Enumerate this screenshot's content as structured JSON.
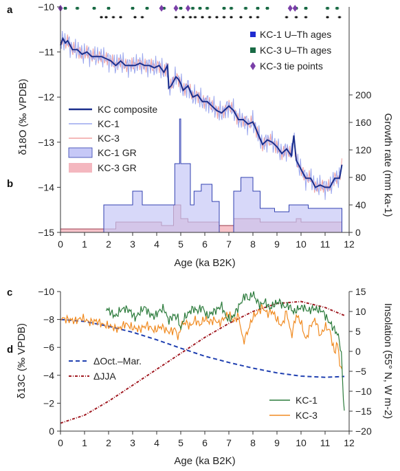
{
  "chart_data": [
    {
      "type": "line",
      "panel_labels": [
        "a",
        "b"
      ],
      "xlabel": "Age (ka B2K)",
      "ylabel_left": "δ18O (‰ VPDB)",
      "ylabel_right": "Growth rate (mm ka-1)",
      "xlim": [
        0,
        12
      ],
      "ylim_left": [
        -15,
        -10
      ],
      "ylim_right": [
        0,
        200
      ],
      "left_axis_inverted": true,
      "x_ticks": [
        "0",
        "1",
        "2",
        "3",
        "4",
        "5",
        "6",
        "7",
        "8",
        "9",
        "10",
        "11",
        "12"
      ],
      "y_ticks_left": [
        "-10",
        "-11",
        "-12",
        "-13",
        "-14",
        "-15"
      ],
      "y_ticks_right": [
        "200",
        "160",
        "120",
        "80",
        "40",
        "0"
      ],
      "legend_top": [
        "KC-1 U–Th ages",
        "KC-3 U–Th ages",
        "KC-3 tie points"
      ],
      "legend_main": [
        "KC composite",
        "KC-1",
        "KC-3",
        "KC-1 GR",
        "KC-3 GR"
      ],
      "colors": {
        "kc_composite": "#1a2e8c",
        "kc1": "#9aa6ee",
        "kc3": "#f0a0a0",
        "kc1_gr_fill": "#c6c8f7",
        "kc3_gr_fill": "#f4b7bf",
        "ages_kc1": "#1f2bd0",
        "ages_kc3": "#1a6b45",
        "tie": "#7a3fa8"
      },
      "series": [
        {
          "name": "KC composite",
          "x": [
            0,
            0.1,
            0.2,
            0.3,
            0.4,
            0.5,
            0.7,
            0.9,
            1.1,
            1.3,
            1.5,
            1.7,
            1.9,
            2.1,
            2.3,
            2.5,
            2.7,
            2.9,
            3.1,
            3.3,
            3.5,
            3.7,
            3.9,
            4.1,
            4.3,
            4.45,
            4.5,
            4.6,
            4.8,
            4.9,
            5.0,
            5.1,
            5.3,
            5.5,
            5.7,
            5.9,
            6.1,
            6.3,
            6.5,
            6.7,
            6.9,
            7.0,
            7.2,
            7.4,
            7.6,
            7.8,
            8.0,
            8.2,
            8.4,
            8.6,
            8.8,
            9.0,
            9.2,
            9.4,
            9.6,
            9.7,
            9.8,
            10.0,
            10.2,
            10.4,
            10.6,
            10.8,
            11.0,
            11.2,
            11.4,
            11.6,
            11.7
          ],
          "y": [
            -10.85,
            -10.7,
            -10.8,
            -10.75,
            -10.85,
            -10.95,
            -10.95,
            -11.05,
            -11.0,
            -11.1,
            -11.1,
            -11.1,
            -11.15,
            -11.2,
            -11.3,
            -11.2,
            -11.3,
            -11.3,
            -11.3,
            -11.25,
            -11.3,
            -11.3,
            -11.35,
            -11.3,
            -11.45,
            -11.3,
            -11.8,
            -11.75,
            -11.55,
            -11.6,
            -11.7,
            -11.85,
            -11.75,
            -12.0,
            -11.95,
            -12.1,
            -12.1,
            -12.2,
            -12.3,
            -12.35,
            -12.25,
            -12.2,
            -12.3,
            -12.5,
            -12.5,
            -12.6,
            -12.55,
            -12.8,
            -13.05,
            -12.95,
            -13.0,
            -13.1,
            -13.25,
            -13.15,
            -13.3,
            -12.85,
            -13.4,
            -13.6,
            -13.8,
            -13.8,
            -14.0,
            -13.95,
            -14.0,
            -14.0,
            -13.8,
            -13.8,
            -13.5
          ]
        },
        {
          "name": "KC-1 GR",
          "x": [
            1.8,
            1.8,
            3.0,
            3.0,
            3.4,
            3.4,
            4.3,
            4.3,
            4.75,
            4.75,
            4.95,
            4.95,
            5.0,
            5.0,
            5.4,
            5.4,
            5.55,
            5.55,
            5.85,
            5.85,
            6.3,
            6.3,
            6.6,
            6.6,
            7.2,
            7.2,
            7.5,
            7.5,
            8.0,
            8.0,
            8.3,
            8.3,
            8.9,
            8.9,
            9.5,
            9.5,
            10.3,
            10.3,
            10.8,
            10.8,
            11.7,
            11.7
          ],
          "y": [
            0,
            40,
            40,
            60,
            60,
            40,
            40,
            40,
            40,
            100,
            100,
            165,
            165,
            100,
            100,
            40,
            40,
            60,
            60,
            70,
            70,
            45,
            45,
            0,
            0,
            60,
            60,
            80,
            80,
            60,
            60,
            35,
            35,
            30,
            30,
            40,
            40,
            35,
            35,
            35,
            35,
            0
          ]
        },
        {
          "name": "KC-3 GR",
          "x": [
            0,
            0,
            1.8,
            1.8,
            2.3,
            2.3,
            3.1,
            3.1,
            4.2,
            4.2,
            4.7,
            4.7,
            5.0,
            5.0,
            5.3,
            5.3,
            6.6,
            6.6,
            7.2,
            7.2,
            8.3,
            8.3,
            9.8,
            9.8,
            10.0,
            10.0,
            11.7,
            11.7
          ],
          "y": [
            0,
            5,
            5,
            5,
            5,
            15,
            15,
            15,
            15,
            10,
            10,
            40,
            40,
            20,
            20,
            15,
            15,
            10,
            10,
            20,
            20,
            15,
            15,
            20,
            20,
            15,
            15,
            0
          ]
        }
      ],
      "kc1_ages": [
        1.7,
        1.9,
        2.2,
        2.5,
        3.1,
        3.4,
        4.8,
        5.1,
        5.4,
        5.6,
        5.9,
        6.2,
        6.5,
        6.8,
        7.1,
        7.5,
        7.9,
        8.2,
        9.4,
        9.8,
        10.2,
        11.1,
        11.6
      ],
      "kc3_ages": [
        0.2,
        0.7,
        1.4,
        2.0,
        3.0,
        3.6,
        4.3,
        5.0,
        5.5,
        5.8,
        6.1,
        6.8,
        7.1,
        7.7,
        8.2,
        8.6,
        9.8,
        10.2,
        11.1,
        11.5
      ],
      "tie_points": [
        0,
        4.2,
        4.8,
        5.3,
        9.55,
        9.75
      ]
    },
    {
      "type": "line",
      "panel_labels": [
        "c",
        "d"
      ],
      "xlabel": "Age (ka B2K)",
      "ylabel_left": "δ13C (‰ VPDB)",
      "ylabel_right": "Insolation (55° N, W m-2)",
      "xlim": [
        0,
        12
      ],
      "ylim_left": [
        0,
        -10
      ],
      "ylim_right": [
        -20,
        15
      ],
      "left_axis_inverted": true,
      "x_ticks": [
        "0",
        "1",
        "2",
        "3",
        "4",
        "5",
        "6",
        "7",
        "8",
        "9",
        "10",
        "11",
        "12"
      ],
      "y_ticks_left": [
        "-10",
        "-8",
        "-6",
        "-4",
        "-2",
        "0"
      ],
      "y_ticks_right": [
        "15",
        "10",
        "5",
        "0",
        "-5",
        "-10",
        "-15",
        "-20"
      ],
      "legend_left": [
        "ΔOct.–Mar.",
        "ΔJJA"
      ],
      "legend_right": [
        "KC-1",
        "KC-3"
      ],
      "colors": {
        "kc1": "#2a7a3a",
        "kc3": "#f08a20",
        "oct_mar": "#1f3fb0",
        "jja": "#a01820"
      },
      "series": [
        {
          "name": "KC-1",
          "x": [
            1.9,
            2.1,
            2.3,
            2.5,
            2.7,
            2.9,
            3.1,
            3.3,
            3.5,
            3.7,
            3.9,
            4.1,
            4.3,
            4.5,
            4.7,
            4.9,
            5.0,
            5.1,
            5.3,
            5.5,
            5.7,
            5.9,
            6.1,
            6.3,
            6.5,
            6.7,
            6.9,
            7.1,
            7.3,
            7.5,
            7.7,
            7.8,
            7.9,
            8.0,
            8.1,
            8.3,
            8.5,
            8.7,
            8.9,
            9.1,
            9.3,
            9.5,
            9.7,
            9.9,
            10.1,
            10.3,
            10.5,
            10.7,
            10.9,
            11.1,
            11.3,
            11.5,
            11.6,
            11.7,
            11.75,
            11.8
          ],
          "y": [
            -8.8,
            -8.5,
            -8.2,
            -8.7,
            -8.8,
            -8.6,
            -8.1,
            -8.5,
            -8.9,
            -8.4,
            -8.2,
            -8.6,
            -8.8,
            -7.9,
            -8.3,
            -8.1,
            -7.2,
            -8.0,
            -8.4,
            -8.8,
            -8.6,
            -8.9,
            -8.2,
            -8.5,
            -8.7,
            -9.0,
            -8.1,
            -8.0,
            -8.6,
            -9.2,
            -9.8,
            -9.4,
            -9.6,
            -9.9,
            -9.5,
            -9.0,
            -9.3,
            -8.8,
            -9.1,
            -9.3,
            -8.9,
            -9.0,
            -8.5,
            -8.8,
            -8.9,
            -8.6,
            -8.8,
            -8.7,
            -8.6,
            -8.0,
            -7.5,
            -7.0,
            -6.5,
            -5.0,
            -2.5,
            -1.5
          ]
        },
        {
          "name": "KC-3",
          "x": [
            0,
            0.3,
            0.6,
            0.9,
            1.2,
            1.5,
            1.8,
            2.1,
            2.4,
            2.7,
            3.0,
            3.3,
            3.6,
            3.9,
            4.2,
            4.5,
            4.8,
            4.9,
            5.0,
            5.2,
            5.4,
            5.6,
            5.8,
            6.0,
            6.2,
            6.4,
            6.6,
            6.8,
            7.0,
            7.2,
            7.4,
            7.6,
            7.8,
            8.0,
            8.2,
            8.4,
            8.6,
            8.8,
            9.0,
            9.2,
            9.4,
            9.6,
            9.8,
            10.0,
            10.2,
            10.4,
            10.6,
            10.8,
            11.0,
            11.2,
            11.4,
            11.5,
            11.6,
            11.7
          ],
          "y": [
            -8.1,
            -8.0,
            -7.9,
            -8.1,
            -7.8,
            -7.9,
            -7.6,
            -7.5,
            -7.3,
            -7.7,
            -7.4,
            -7.3,
            -7.6,
            -7.2,
            -7.5,
            -7.1,
            -7.3,
            -6.5,
            -7.6,
            -7.8,
            -7.5,
            -8.0,
            -7.6,
            -8.1,
            -7.8,
            -8.0,
            -7.7,
            -8.1,
            -8.4,
            -7.9,
            -8.3,
            -6.4,
            -7.2,
            -8.2,
            -8.5,
            -8.9,
            -8.4,
            -8.6,
            -8.0,
            -7.5,
            -8.6,
            -6.8,
            -8.3,
            -7.8,
            -6.5,
            -7.6,
            -8.0,
            -6.8,
            -7.5,
            -7.2,
            -5.5,
            -6.5,
            -5.0,
            -4.2
          ]
        },
        {
          "name": "ΔOct.–Mar.",
          "x": [
            0,
            1,
            2,
            3,
            4,
            5,
            6,
            7,
            8,
            9,
            10,
            11,
            11.8
          ],
          "y": [
            8,
            7.5,
            6.3,
            4.8,
            2.9,
            0.8,
            -1.2,
            -2.8,
            -4.2,
            -5.4,
            -6.2,
            -6.5,
            -6.3
          ]
        },
        {
          "name": "ΔJJA",
          "x": [
            0,
            1,
            2,
            3,
            4,
            5,
            6,
            7,
            8,
            9,
            10,
            11,
            11.8
          ],
          "y": [
            -18,
            -16,
            -12.5,
            -8.5,
            -4.5,
            -0.5,
            3.5,
            7,
            10,
            12,
            12.5,
            11,
            9
          ]
        }
      ]
    }
  ]
}
